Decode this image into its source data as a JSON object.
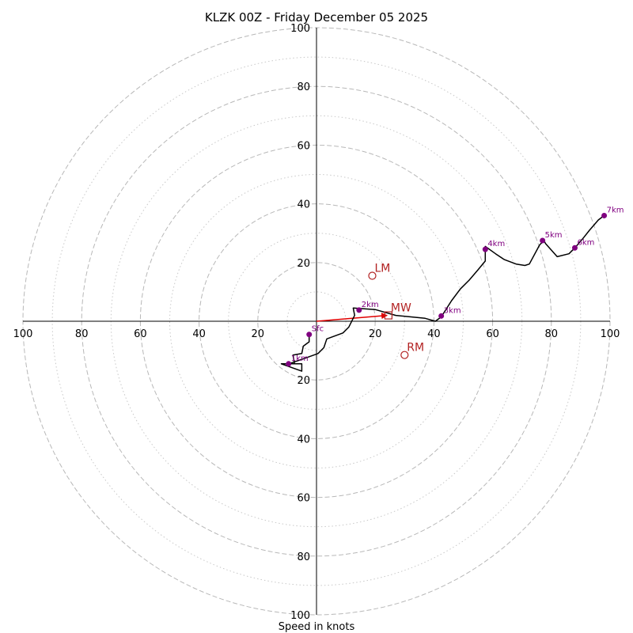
{
  "chart_data": {
    "type": "hodograph",
    "title": "KLZK 00Z - Friday December 05 2025",
    "xlabel": "Speed in knots",
    "max_speed": 100,
    "rings_major": [
      20,
      40,
      60,
      80,
      100
    ],
    "rings_minor": [
      10,
      30,
      50,
      70,
      90
    ],
    "tick_labels": [
      {
        "pos": 20,
        "label": "20"
      },
      {
        "pos": 40,
        "label": "40"
      },
      {
        "pos": 60,
        "label": "60"
      },
      {
        "pos": 80,
        "label": "80"
      },
      {
        "pos": 100,
        "label": "100"
      }
    ],
    "line_color": "#000000",
    "marker_color": "#800080",
    "motion_color": "#b22222",
    "arrow_color": "#e00000",
    "ring_color": "#b8b8b8",
    "trace": [
      [
        -2.5,
        -4.5
      ],
      [
        -2.5,
        -7
      ],
      [
        -4.5,
        -8.5
      ],
      [
        -5,
        -11
      ],
      [
        -8,
        -11.5
      ],
      [
        -7.5,
        -14.5
      ],
      [
        -12,
        -14.5
      ],
      [
        -5,
        -17
      ],
      [
        -5,
        -14.5
      ],
      [
        -9.5,
        -14.5
      ],
      [
        -5,
        -13
      ],
      [
        0.5,
        -11
      ],
      [
        2.5,
        -9
      ],
      [
        3.5,
        -6
      ],
      [
        9,
        -4
      ],
      [
        11,
        -2
      ],
      [
        13,
        2
      ],
      [
        12.5,
        4.5
      ],
      [
        20,
        4
      ],
      [
        27,
        2
      ],
      [
        37,
        1
      ],
      [
        40.5,
        0
      ],
      [
        42.5,
        1.5
      ],
      [
        46,
        7
      ],
      [
        49,
        11
      ],
      [
        52,
        14
      ],
      [
        55,
        17.5
      ],
      [
        57.5,
        20.5
      ],
      [
        57.5,
        25.5
      ],
      [
        61,
        23
      ],
      [
        64,
        21
      ],
      [
        68,
        19.5
      ],
      [
        71,
        19
      ],
      [
        72.5,
        19.5
      ],
      [
        76,
        26
      ],
      [
        77.5,
        27.5
      ],
      [
        78,
        26.5
      ],
      [
        82,
        22
      ],
      [
        86,
        23
      ],
      [
        88,
        25
      ],
      [
        91,
        28.5
      ],
      [
        93,
        31
      ],
      [
        96,
        34.5
      ],
      [
        98,
        36
      ]
    ],
    "height_markers": [
      {
        "label": "Sfc",
        "u": -2.5,
        "v": -4.5
      },
      {
        "label": "1km",
        "u": -9.5,
        "v": -14.5
      },
      {
        "label": "2km",
        "u": 14.5,
        "v": 3.8
      },
      {
        "label": "3km",
        "u": 42.5,
        "v": 1.8
      },
      {
        "label": "4km",
        "u": 57.5,
        "v": 24.5
      },
      {
        "label": "5km",
        "u": 77,
        "v": 27.5
      },
      {
        "label": "6km",
        "u": 88,
        "v": 25
      },
      {
        "label": "7km",
        "u": 98,
        "v": 36
      }
    ],
    "storm_motions": [
      {
        "label": "LM",
        "u": 19,
        "v": 15.5,
        "marker": "circle"
      },
      {
        "label": "RM",
        "u": 30,
        "v": -11.5,
        "marker": "circle"
      },
      {
        "label": "MW",
        "u": 24.5,
        "v": 2,
        "marker": "square"
      }
    ],
    "mean_wind_arrow": {
      "from": [
        0,
        0
      ],
      "to": [
        24,
        2
      ]
    }
  }
}
